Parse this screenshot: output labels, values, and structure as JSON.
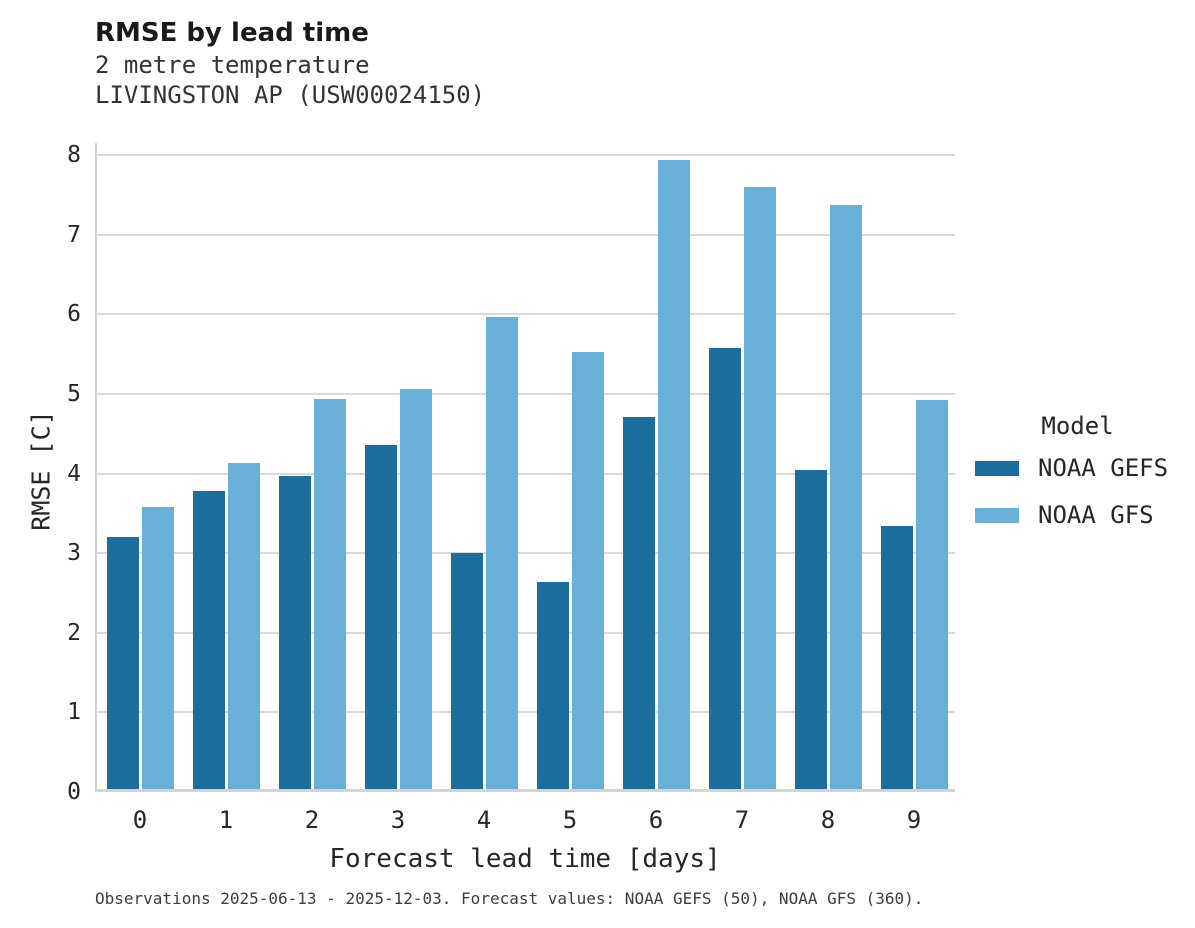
{
  "header": {
    "title": "RMSE by lead time",
    "subtitle_line1": "2 metre temperature",
    "subtitle_line2": "LIVINGSTON AP (USW00024150)"
  },
  "chart_data": {
    "type": "bar",
    "categories": [
      "0",
      "1",
      "2",
      "3",
      "4",
      "5",
      "6",
      "7",
      "8",
      "9"
    ],
    "series": [
      {
        "name": "NOAA GEFS",
        "color": "#1B6E9E",
        "values": [
          3.16,
          3.75,
          3.93,
          4.32,
          2.97,
          2.6,
          4.67,
          5.54,
          4.01,
          3.3
        ]
      },
      {
        "name": "NOAA GFS",
        "color": "#69B0D8",
        "values": [
          3.54,
          4.1,
          4.9,
          5.03,
          5.93,
          5.49,
          7.9,
          7.56,
          7.34,
          4.89
        ]
      }
    ],
    "title": "RMSE by lead time",
    "xlabel": "Forecast lead time [days]",
    "ylabel": "RMSE [C]",
    "ylim": [
      0,
      8
    ],
    "yticks": [
      0,
      1,
      2,
      3,
      4,
      5,
      6,
      7,
      8
    ],
    "grid": true,
    "legend_title": "Model",
    "legend_position": "right",
    "grid_color": "#d9d9d9",
    "axis_color": "#d4d4d4"
  },
  "footer": {
    "note": "Observations 2025-06-13 - 2025-12-03. Forecast values: NOAA GEFS (50), NOAA GFS (360)."
  }
}
